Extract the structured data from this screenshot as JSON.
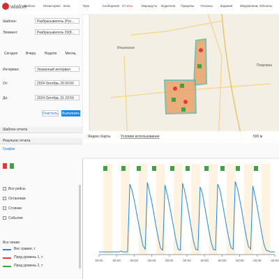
{
  "header": {
    "logo": "wialon",
    "nav": [
      "Шаблон",
      "Мониторинг",
      "Зона",
      "Трек",
      "Сообщения",
      "Отчеты",
      "Маршруты",
      "Водители",
      "Прицепы",
      "Геозоны",
      "Задания",
      "Уведомления",
      "Объекты"
    ]
  },
  "form": {
    "template_label": "Шаблон:",
    "template": "Разбрасыватель (Рус...",
    "unit_label": "Элемент:",
    "unit": "Разбрасыватель 20(8...",
    "periods": [
      "Сегодня",
      "Вчера",
      "Неделя",
      "Месяц"
    ],
    "interval_label": "Интервал:",
    "interval": "Указанный интервал",
    "from_label": "От:",
    "from": "2024 Октябрь 20 00:00",
    "to_label": "До:",
    "to": "2024 Октябрь 31 23:59",
    "clear": "Очистить",
    "run": "Выполнить"
  },
  "sections": {
    "template_section": "Шаблон отчета",
    "result_section": "Результат отчета",
    "graph": "График"
  },
  "layers": [
    "Все рейсы",
    "Остановки",
    "Стоянки",
    "События"
  ],
  "lines": {
    "all": "Все линии",
    "items": [
      {
        "label": "Пред.уровень 1, т",
        "color": "#e53935"
      },
      {
        "label": "Пред.уровень 2, т",
        "color": "#43a047"
      }
    ]
  },
  "map": {
    "places": [
      "Ильинское",
      "Покровка"
    ],
    "provider": "Яндекс Карты",
    "terms": "Условия использования",
    "scale": "500 м"
  },
  "chart_data": {
    "type": "line",
    "x": [
      0,
      3,
      6,
      9,
      12,
      15,
      18,
      21,
      24,
      27,
      30,
      33,
      36,
      39,
      42,
      45,
      48,
      51,
      54,
      57,
      60,
      63,
      66,
      69,
      72,
      75,
      78,
      81,
      84,
      87,
      90,
      93,
      96,
      99,
      102,
      105,
      108,
      111,
      114,
      117,
      120,
      123,
      126,
      129,
      132,
      135,
      138,
      141,
      144,
      147,
      150,
      153,
      156,
      159,
      162,
      165,
      168,
      171,
      174,
      177,
      180,
      183,
      186,
      189,
      192,
      195,
      198,
      201,
      204,
      207,
      210,
      213,
      216,
      219,
      222,
      225,
      228,
      231,
      234,
      237,
      240
    ],
    "series": [
      {
        "name": "Вес гравия, т",
        "color": "#1e88e5",
        "values": [
          0.3,
          0.3,
          0.3,
          0.3,
          0.3,
          0.3,
          0.3,
          0.3,
          0.3,
          0.3,
          0.4,
          0.3,
          0.3,
          0.3,
          7.9,
          7.2,
          6.1,
          4.8,
          3.5,
          2.2,
          1.0,
          0.6,
          8.1,
          7.0,
          5.9,
          4.5,
          3.1,
          1.8,
          0.7,
          0.5,
          7.8,
          6.8,
          5.6,
          4.3,
          3.0,
          1.6,
          0.6,
          0.5,
          8.0,
          7.1,
          5.8,
          4.4,
          2.9,
          1.5,
          0.6,
          0.5,
          7.6,
          6.9,
          5.5,
          4.1,
          2.7,
          1.4,
          0.6,
          0.5,
          7.9,
          7.3,
          6.0,
          4.6,
          3.2,
          1.9,
          0.8,
          0.6,
          8.2,
          7.4,
          6.2,
          4.9,
          3.4,
          2.0,
          0.9,
          0.6,
          7.7,
          6.6,
          5.3,
          3.9,
          2.5,
          1.2,
          0.5,
          0.4,
          0.3,
          0.3,
          0.3
        ]
      }
    ],
    "xlim": [
      0,
      240
    ],
    "ylim": [
      0,
      9
    ],
    "xticks": [
      {
        "value": 0,
        "label": "00:00"
      },
      {
        "value": 24,
        "label": "00:00"
      },
      {
        "value": 48,
        "label": "00:00"
      },
      {
        "value": 72,
        "label": "00:00"
      },
      {
        "value": 96,
        "label": "00:00"
      },
      {
        "value": 120,
        "label": "00:00"
      },
      {
        "value": 144,
        "label": "00:00"
      },
      {
        "value": 168,
        "label": "00:00"
      },
      {
        "value": 192,
        "label": "00:00"
      },
      {
        "value": 216,
        "label": "00:00"
      },
      {
        "value": 240,
        "label": "00:00"
      }
    ]
  }
}
